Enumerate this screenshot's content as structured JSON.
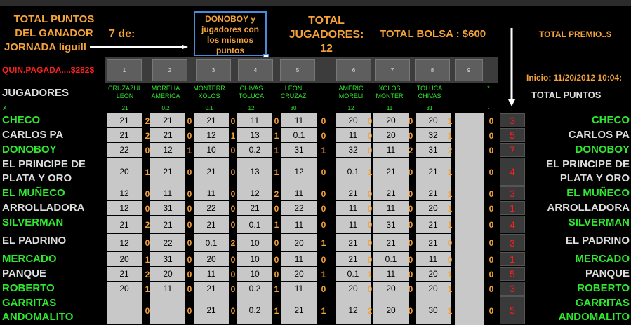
{
  "header": {
    "total_puntos_ganador": "TOTAL PUNTOS DEL GANADOR",
    "jornada_label": "JORNADA liguill",
    "jornada_num": "7 de:",
    "callout": "DONOBOY y jugadores con los mismos puntos",
    "total_jugadores": "TOTAL JUGADORES:",
    "total_jugadores_count": "12",
    "total_bolsa": "TOTAL BOLSA : $600",
    "total_premio": "TOTAL PREMIO..$",
    "quin_pagada": "QUIN.PAGADA....$282$",
    "inicio": "Inicio: 11/20/2012 10:04:",
    "jugadores": "JUGADORES",
    "total_puntos": "TOTAL PUNTOS",
    "x_label": "X"
  },
  "colors": {
    "orange": "#f4a23a",
    "green": "#2ee82e",
    "red": "#ff1e1e",
    "white": "#dddddd",
    "callout_border": "#4b8ad8"
  },
  "match_numbers": [
    "1",
    "2",
    "3",
    "4",
    "5",
    "6",
    "7",
    "8",
    "9"
  ],
  "matches": [
    {
      "line1": "CRUZAZUL",
      "line2": "LEON",
      "pts": "21"
    },
    {
      "line1": "MORELIA",
      "line2": "AMERICA",
      "pts": "0.2"
    },
    {
      "line1": "MONTERR",
      "line2": "XOLOS",
      "pts": "0.1"
    },
    {
      "line1": "CHIVAS",
      "line2": "TOLUCA",
      "pts": "12"
    },
    {
      "line1": "LEON",
      "line2": "CRUZAZ",
      "pts": "30"
    },
    {
      "line1": "AMERIC",
      "line2": "MORELI",
      "pts": "12"
    },
    {
      "line1": "XOLOS",
      "line2": "MONTER",
      "pts": "11"
    },
    {
      "line1": "TOLUCA",
      "line2": "CHIVAS",
      "pts": "31"
    },
    {
      "line1": "",
      "line2": "*",
      "pts": "-"
    }
  ],
  "players": [
    {
      "name": "CHECO",
      "color": "green",
      "cells": [
        "21",
        "21",
        "21",
        "11",
        "11",
        "20",
        "20",
        "20"
      ],
      "scores": [
        "2",
        "0",
        "0",
        "0",
        "0",
        "0",
        "0",
        "1"
      ],
      "z9": "0",
      "total": "3"
    },
    {
      "name": "CARLOS PA",
      "color": "white",
      "cells": [
        "21",
        "21",
        "12",
        "13",
        "0.1",
        "11",
        "20",
        "32"
      ],
      "scores": [
        "2",
        "0",
        "1",
        "1",
        "0",
        "0",
        "0",
        "1"
      ],
      "z9": "0",
      "total": "5"
    },
    {
      "name": "DONOBOY",
      "color": "green",
      "cells": [
        "22",
        "12",
        "10",
        "0.2",
        "31",
        "32",
        "11",
        "31"
      ],
      "scores": [
        "0",
        "1",
        "0",
        "1",
        "1",
        "0",
        "2",
        "2"
      ],
      "z9": "0",
      "total": "7"
    },
    {
      "name": "EL PRINCIPE DE PLATA Y ORO",
      "color": "white",
      "cells": [
        "20",
        "21",
        "21",
        "13",
        "12",
        "0.1",
        "21",
        "21"
      ],
      "scores": [
        "1",
        "0",
        "0",
        "1",
        "0",
        "1",
        "0",
        "1"
      ],
      "z9": "0",
      "total": "4"
    },
    {
      "name": "EL MUÑECO",
      "color": "green",
      "cells": [
        "12",
        "11",
        "11",
        "12",
        "11",
        "21",
        "21",
        "21"
      ],
      "scores": [
        "0",
        "0",
        "0",
        "2",
        "0",
        "0",
        "0",
        "1"
      ],
      "z9": "0",
      "total": "3"
    },
    {
      "name": "ARROLLADORA",
      "color": "white",
      "cells": [
        "12",
        "31",
        "22",
        "21",
        "22",
        "11",
        "11",
        "20"
      ],
      "scores": [
        "0",
        "0",
        "0",
        "0",
        "0",
        "0",
        "0",
        "1"
      ],
      "z9": "0",
      "total": "1"
    },
    {
      "name": "SILVERMAN",
      "color": "green",
      "cells": [
        "21",
        "21",
        "21",
        "0.1",
        "11",
        "11",
        "31",
        "21"
      ],
      "scores": [
        "2",
        "0",
        "0",
        "1",
        "0",
        "0",
        "0",
        "1"
      ],
      "z9": "0",
      "total": "4"
    },
    {
      "name": "EL PADRINO",
      "color": "white",
      "cells": [
        "12",
        "22",
        "0.1",
        "10",
        "20",
        "21",
        "21",
        "21"
      ],
      "scores": [
        "0",
        "0",
        "2",
        "0",
        "1",
        "0",
        "0",
        "0"
      ],
      "z9": "0",
      "total": "3"
    },
    {
      "name": "MERCADO",
      "color": "green",
      "cells": [
        "20",
        "31",
        "20",
        "10",
        "11",
        "21",
        "0.1",
        "11"
      ],
      "scores": [
        "1",
        "0",
        "0",
        "0",
        "0",
        "0",
        "0",
        "0"
      ],
      "z9": "0",
      "total": "1"
    },
    {
      "name": "PANQUE",
      "color": "white",
      "cells": [
        "21",
        "20",
        "11",
        "10",
        "20",
        "0.1",
        "11",
        "20"
      ],
      "scores": [
        "2",
        "0",
        "0",
        "0",
        "1",
        "1",
        "0",
        "1"
      ],
      "z9": "0",
      "total": "5"
    },
    {
      "name": "ROBERTO",
      "color": "green",
      "cells": [
        "20",
        "11",
        "21",
        "0.2",
        "11",
        "20",
        "20",
        "20"
      ],
      "scores": [
        "1",
        "0",
        "0",
        "1",
        "0",
        "0",
        "0",
        "1"
      ],
      "z9": "0",
      "total": "3"
    },
    {
      "name": "GARRITAS ANDOMALITO",
      "color": "green",
      "cells": [
        "",
        "",
        "21",
        "0.2",
        "21",
        "12",
        "20",
        "30"
      ],
      "scores": [
        "0",
        "0",
        "0",
        "1",
        "1",
        "2",
        "0",
        "1"
      ],
      "z9": "0",
      "total": "5"
    }
  ]
}
